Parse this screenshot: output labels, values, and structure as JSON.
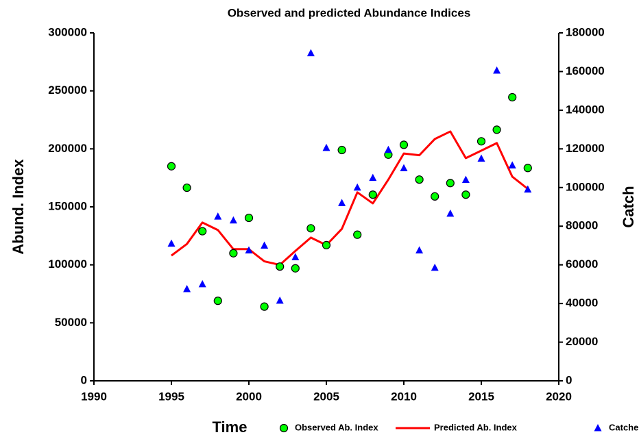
{
  "chart_data": {
    "type": "line",
    "title": "Observed and predicted Abundance Indices",
    "x_label": "Time",
    "y_label": "Abund. Index",
    "y2_label": "Catch",
    "x": [
      1995,
      1996,
      1997,
      1998,
      1999,
      2000,
      2001,
      2002,
      2003,
      2004,
      2005,
      2006,
      2007,
      2008,
      2009,
      2010,
      2011,
      2012,
      2013,
      2014,
      2015,
      2016,
      2017,
      2018
    ],
    "series": [
      {
        "name": "Observed Ab. Index",
        "color": "#00ff00",
        "style": "markers",
        "marker": "circle",
        "values": [
          185000,
          166500,
          129000,
          69000,
          110000,
          140500,
          64000,
          98500,
          97000,
          131500,
          117000,
          199000,
          126000,
          160500,
          195000,
          203500,
          173500,
          159000,
          170500,
          160500,
          206500,
          216500,
          244500,
          183500
        ]
      },
      {
        "name": "Predicted Ab. Index",
        "color": "#ff0000",
        "style": "line",
        "values": [
          108000,
          118000,
          136500,
          130000,
          113500,
          113500,
          103000,
          100000,
          112000,
          123500,
          117000,
          131000,
          162500,
          153000,
          173500,
          196000,
          194500,
          208500,
          215000,
          192000,
          198500,
          205000,
          176000,
          165500
        ]
      },
      {
        "name": "Catches",
        "color": "#0000ff",
        "style": "markers",
        "marker": "triangle",
        "axis": "y2",
        "values": [
          71000,
          47500,
          50000,
          85000,
          83000,
          67500,
          70000,
          41500,
          64000,
          169500,
          120500,
          92000,
          100000,
          105000,
          119500,
          110000,
          67500,
          58500,
          86500,
          104000,
          115000,
          160500,
          111500,
          99000
        ]
      }
    ],
    "xlim": [
      1990,
      2020
    ],
    "xticks": [
      1990,
      1995,
      2000,
      2005,
      2010,
      2015,
      2020
    ],
    "ylim": [
      0,
      300000
    ],
    "yticks": [
      0,
      50000,
      100000,
      150000,
      200000,
      250000,
      300000
    ],
    "y2lim": [
      0,
      180000
    ],
    "y2ticks": [
      0,
      20000,
      40000,
      60000,
      80000,
      100000,
      120000,
      140000,
      160000,
      180000
    ],
    "legend": "bottom"
  }
}
